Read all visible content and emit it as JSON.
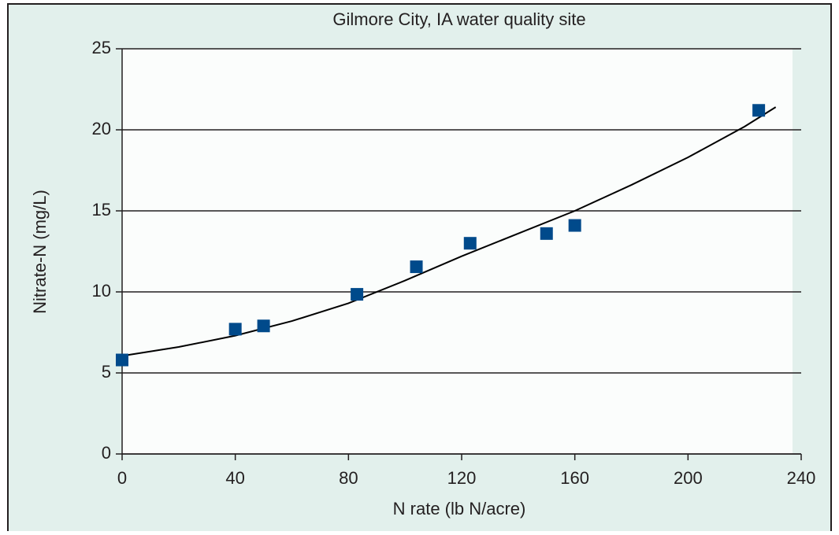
{
  "chart_data": {
    "type": "scatter",
    "title": "Gilmore City, IA water quality site",
    "x_label": "N rate (lb N/acre)",
    "y_label": "Nitrate-N (mg/L)",
    "x": [
      0,
      40,
      50,
      83,
      104,
      123,
      150,
      160,
      225
    ],
    "values": [
      5.8,
      7.7,
      7.9,
      9.85,
      11.55,
      13.0,
      13.6,
      14.1,
      21.2
    ],
    "color": "#004a8b",
    "trendline": {
      "x": [
        0,
        20,
        40,
        60,
        80,
        100,
        120,
        140,
        160,
        180,
        200,
        220,
        231
      ],
      "values": [
        6.05,
        6.6,
        7.3,
        8.2,
        9.3,
        10.7,
        12.2,
        13.6,
        15.0,
        16.6,
        18.3,
        20.2,
        21.4
      ],
      "color": "#000000"
    },
    "xlim": [
      0,
      240
    ],
    "xticks": [
      0,
      40,
      80,
      120,
      160,
      200,
      240
    ],
    "ylim": [
      0,
      25
    ],
    "yticks": [
      0,
      5,
      10,
      15,
      20,
      25
    ],
    "grid": true
  }
}
